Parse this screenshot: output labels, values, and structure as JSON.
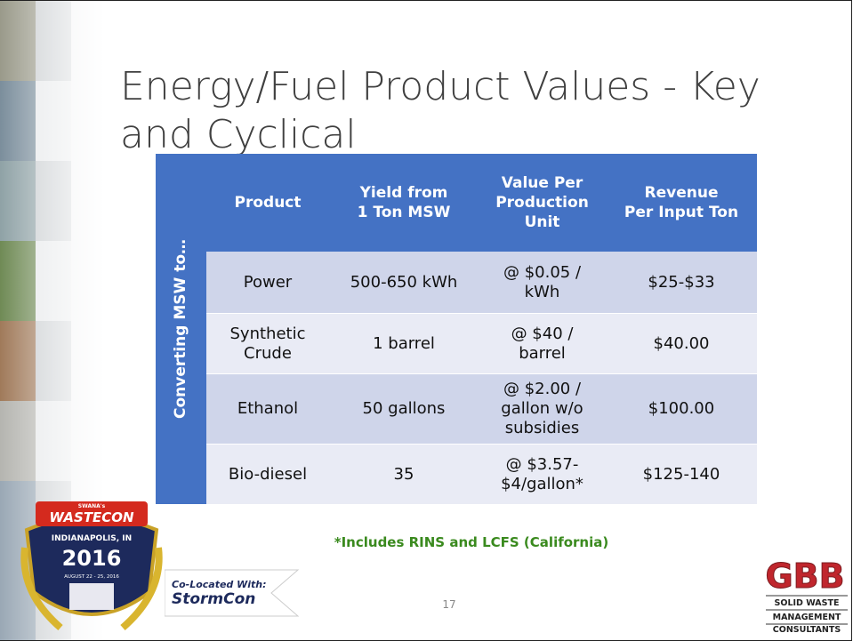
{
  "title": [
    "Energy/Fuel Product Values - Key",
    "and Cyclical"
  ],
  "table": {
    "side_label": "Converting MSW to…",
    "header": [
      [
        "Product"
      ],
      [
        "Yield from",
        "1 Ton MSW"
      ],
      [
        "Value Per",
        "Production",
        "Unit"
      ],
      [
        "Revenue",
        "Per Input Ton"
      ]
    ],
    "rows": [
      [
        [
          "Power"
        ],
        [
          "500-650 kWh"
        ],
        [
          "@ $0.05 /",
          "kWh"
        ],
        [
          "$25-$33"
        ]
      ],
      [
        [
          "Synthetic",
          "Crude"
        ],
        [
          "1 barrel"
        ],
        [
          "@ $40 /",
          "barrel"
        ],
        [
          "$40.00"
        ]
      ],
      [
        [
          "Ethanol"
        ],
        [
          "50 gallons"
        ],
        [
          "@ $2.00 /",
          "gallon w/o",
          "subsidies"
        ],
        [
          "$100.00"
        ]
      ],
      [
        [
          "Bio-diesel"
        ],
        [
          "35"
        ],
        [
          "@ $3.57-",
          "$4/gallon*"
        ],
        [
          "$125-140"
        ]
      ]
    ]
  },
  "footnote": "*Includes RINS and LCFS (California)",
  "page_number": "17",
  "badge": {
    "top": "SWANA's",
    "name": "WASTECON",
    "city": "INDIANAPOLIS, IN",
    "year": "2016",
    "dates": "AUGUST 22 - 25, 2016"
  },
  "stormcon": {
    "label": "Co-Located With:",
    "name": "StormCon"
  },
  "gbb": {
    "name": "GBB",
    "lines": [
      "SOLID WASTE",
      "MANAGEMENT",
      "CONSULTANTS"
    ]
  }
}
